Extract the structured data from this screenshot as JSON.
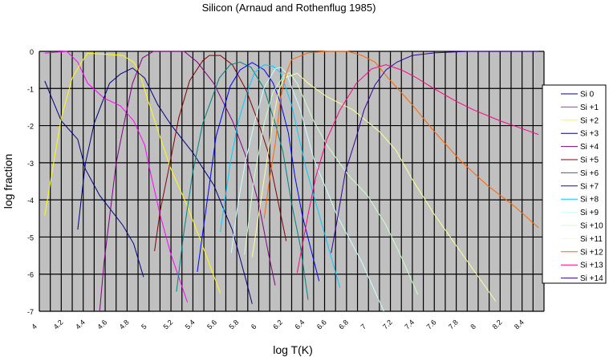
{
  "chart_data": {
    "type": "line",
    "title": "Silicon (Arnaud and Rothenflug 1985)",
    "xlabel": "log T(K)",
    "ylabel": "log fraction",
    "xlim": [
      4.0,
      8.6
    ],
    "ylim": [
      -7,
      0
    ],
    "x_ticks": [
      "4",
      "4.2",
      "4.4",
      "4.6",
      "4.8",
      "5",
      "5.2",
      "5.4",
      "5.6",
      "5.8",
      "6",
      "6.2",
      "6.4",
      "6.6",
      "6.8",
      "7",
      "7.2",
      "7.4",
      "7.6",
      "7.8",
      "8",
      "8.2",
      "8.4"
    ],
    "y_ticks": [
      "0",
      "-1",
      "-2",
      "-3",
      "-4",
      "-5",
      "-6",
      "-7"
    ],
    "grid": "vertical every 0.1, horizontal every 1",
    "plot_background": "#c0c0c0",
    "legend_position": "right",
    "series": [
      {
        "name": "Si  0",
        "color": "#000080",
        "points": [
          [
            4.05,
            -0.8
          ],
          [
            4.2,
            -1.87
          ],
          [
            4.35,
            -2.37
          ],
          [
            4.42,
            -3.17
          ],
          [
            4.55,
            -3.88
          ],
          [
            4.76,
            -4.68
          ],
          [
            4.86,
            -5.18
          ],
          [
            4.95,
            -6.08
          ]
        ]
      },
      {
        "name": "Si +1",
        "color": "#ff00ff",
        "points": [
          [
            4.05,
            -0.05
          ],
          [
            4.25,
            0
          ],
          [
            4.35,
            -0.29
          ],
          [
            4.44,
            -0.86
          ],
          [
            4.59,
            -1.26
          ],
          [
            4.74,
            -1.47
          ],
          [
            4.86,
            -1.87
          ],
          [
            4.96,
            -2.52
          ],
          [
            5.0,
            -3.09
          ],
          [
            5.1,
            -4.39
          ],
          [
            5.2,
            -5.47
          ],
          [
            5.35,
            -6.76
          ]
        ]
      },
      {
        "name": "Si +2",
        "color": "#ffff00",
        "points": [
          [
            4.05,
            -4.42
          ],
          [
            4.1,
            -3.53
          ],
          [
            4.2,
            -1.8
          ],
          [
            4.3,
            -0.72
          ],
          [
            4.4,
            -0.22
          ],
          [
            4.44,
            -0.05
          ],
          [
            4.66,
            -0.09
          ],
          [
            4.76,
            -0.11
          ],
          [
            4.86,
            -0.29
          ],
          [
            4.91,
            -0.54
          ],
          [
            4.98,
            -1.22
          ],
          [
            5.1,
            -2.3
          ],
          [
            5.2,
            -3.17
          ],
          [
            5.35,
            -4.17
          ],
          [
            5.49,
            -5.25
          ],
          [
            5.65,
            -6.51
          ]
        ]
      },
      {
        "name": "Si +3",
        "color": "#000080",
        "points": [
          [
            4.35,
            -4.8
          ],
          [
            4.42,
            -3.02
          ],
          [
            4.5,
            -1.94
          ],
          [
            4.64,
            -0.86
          ],
          [
            4.74,
            -0.61
          ],
          [
            4.85,
            -0.45
          ],
          [
            4.96,
            -0.72
          ],
          [
            5.08,
            -1.44
          ],
          [
            5.2,
            -1.98
          ],
          [
            5.4,
            -2.73
          ],
          [
            5.59,
            -3.6
          ],
          [
            5.69,
            -4.32
          ],
          [
            5.76,
            -4.82
          ],
          [
            5.88,
            -6.12
          ],
          [
            5.94,
            -6.8
          ]
        ]
      },
      {
        "name": "Si +4",
        "color": "#800080",
        "points": [
          [
            4.55,
            -7
          ],
          [
            4.59,
            -5.68
          ],
          [
            4.7,
            -3.02
          ],
          [
            4.79,
            -1.69
          ],
          [
            4.85,
            -0.86
          ],
          [
            4.94,
            -0.18
          ],
          [
            5.04,
            0
          ],
          [
            5.32,
            0
          ],
          [
            5.44,
            -0.29
          ],
          [
            5.59,
            -0.86
          ],
          [
            5.76,
            -1.87
          ],
          [
            5.88,
            -2.81
          ],
          [
            6.0,
            -4.1
          ],
          [
            6.09,
            -5.47
          ],
          [
            6.15,
            -6.3
          ]
        ]
      },
      {
        "name": "Si +5",
        "color": "#800000",
        "points": [
          [
            5.05,
            -5.38
          ],
          [
            5.1,
            -4.32
          ],
          [
            5.19,
            -3.02
          ],
          [
            5.27,
            -1.8
          ],
          [
            5.37,
            -0.79
          ],
          [
            5.49,
            -0.25
          ],
          [
            5.55,
            -0.11
          ],
          [
            5.65,
            -0.11
          ],
          [
            5.76,
            -0.36
          ],
          [
            5.88,
            -1.01
          ],
          [
            6.0,
            -1.94
          ],
          [
            6.08,
            -2.66
          ],
          [
            6.15,
            -3.67
          ],
          [
            6.25,
            -5.11
          ]
        ]
      },
      {
        "name": "Si +6",
        "color": "#008080",
        "points": [
          [
            5.25,
            -6.47
          ],
          [
            5.32,
            -4.82
          ],
          [
            5.4,
            -3.24
          ],
          [
            5.49,
            -1.94
          ],
          [
            5.64,
            -0.72
          ],
          [
            5.74,
            -0.36
          ],
          [
            5.83,
            -0.29
          ],
          [
            5.93,
            -0.43
          ],
          [
            6.05,
            -1.01
          ],
          [
            6.15,
            -1.94
          ],
          [
            6.22,
            -2.7
          ],
          [
            6.3,
            -4.1
          ],
          [
            6.38,
            -5.25
          ],
          [
            6.45,
            -6.69
          ]
        ]
      },
      {
        "name": "Si +7",
        "color": "#0000ff",
        "points": [
          [
            5.44,
            -5.94
          ],
          [
            5.54,
            -3.81
          ],
          [
            5.61,
            -2.3
          ],
          [
            5.74,
            -0.94
          ],
          [
            5.83,
            -0.5
          ],
          [
            5.94,
            -0.3
          ],
          [
            6.05,
            -0.5
          ],
          [
            6.13,
            -0.85
          ],
          [
            6.2,
            -1.4
          ],
          [
            6.27,
            -2.2
          ],
          [
            6.33,
            -3.38
          ],
          [
            6.4,
            -4.46
          ],
          [
            6.55,
            -6.19
          ]
        ]
      },
      {
        "name": "Si +8",
        "color": "#00ccff",
        "points": [
          [
            5.65,
            -4.86
          ],
          [
            5.74,
            -3.02
          ],
          [
            5.81,
            -1.94
          ],
          [
            5.88,
            -1.22
          ],
          [
            5.96,
            -0.58
          ],
          [
            6.05,
            -0.36
          ],
          [
            6.13,
            -0.4
          ],
          [
            6.2,
            -0.58
          ],
          [
            6.3,
            -1.44
          ],
          [
            6.42,
            -3.02
          ],
          [
            6.55,
            -4.39
          ],
          [
            6.74,
            -6.37
          ]
        ]
      },
      {
        "name": "Si +9",
        "color": "#ccffff",
        "points": [
          [
            5.75,
            -5.43
          ],
          [
            5.81,
            -4.1
          ],
          [
            5.88,
            -2.95
          ],
          [
            5.96,
            -1.94
          ],
          [
            6.05,
            -0.97
          ],
          [
            6.15,
            -0.47
          ],
          [
            6.2,
            -0.43
          ],
          [
            6.25,
            -0.58
          ],
          [
            6.38,
            -1.58
          ],
          [
            6.5,
            -2.88
          ],
          [
            6.72,
            -4.46
          ],
          [
            6.94,
            -5.68
          ],
          [
            7.14,
            -7
          ]
        ]
      },
      {
        "name": "Si +10",
        "color": "#ccffcc",
        "points": [
          [
            5.87,
            -5.47
          ],
          [
            5.96,
            -3.38
          ],
          [
            6.05,
            -1.94
          ],
          [
            6.13,
            -1.1
          ],
          [
            6.23,
            -0.65
          ],
          [
            6.28,
            -0.58
          ],
          [
            6.35,
            -0.86
          ],
          [
            6.5,
            -1.87
          ],
          [
            6.62,
            -2.52
          ],
          [
            6.81,
            -3.31
          ],
          [
            6.99,
            -3.88
          ],
          [
            7.16,
            -4.68
          ],
          [
            7.3,
            -5.54
          ],
          [
            7.45,
            -6.55
          ]
        ]
      },
      {
        "name": "Si +11",
        "color": "#ffff99",
        "points": [
          [
            5.94,
            -5.54
          ],
          [
            6.03,
            -3.81
          ],
          [
            6.13,
            -1.85
          ],
          [
            6.18,
            -1.08
          ],
          [
            6.23,
            -0.72
          ],
          [
            6.35,
            -0.59
          ],
          [
            6.45,
            -0.86
          ],
          [
            6.62,
            -1.22
          ],
          [
            6.86,
            -1.58
          ],
          [
            7.1,
            -2.16
          ],
          [
            7.25,
            -2.66
          ],
          [
            7.4,
            -3.45
          ],
          [
            7.6,
            -4.39
          ],
          [
            7.84,
            -5.4
          ],
          [
            8.16,
            -6.73
          ]
        ]
      },
      {
        "name": "Si +12",
        "color": "#ff6600",
        "points": [
          [
            6.05,
            -4.5
          ],
          [
            6.1,
            -3.4
          ],
          [
            6.15,
            -2.5
          ],
          [
            6.2,
            -1.25
          ],
          [
            6.25,
            -0.6
          ],
          [
            6.3,
            -0.22
          ],
          [
            6.45,
            -0.04
          ],
          [
            6.62,
            0
          ],
          [
            6.81,
            0
          ],
          [
            6.94,
            -0.11
          ],
          [
            7.06,
            -0.29
          ],
          [
            7.18,
            -0.72
          ],
          [
            7.4,
            -1.44
          ],
          [
            7.6,
            -2.16
          ],
          [
            7.84,
            -2.95
          ],
          [
            8.08,
            -3.6
          ],
          [
            8.33,
            -4.17
          ],
          [
            8.55,
            -4.75
          ]
        ]
      },
      {
        "name": "Si +13",
        "color": "#ff0080",
        "points": [
          [
            6.35,
            -5.97
          ],
          [
            6.4,
            -5.18
          ],
          [
            6.45,
            -4.39
          ],
          [
            6.52,
            -3.38
          ],
          [
            6.62,
            -2.37
          ],
          [
            6.74,
            -1.58
          ],
          [
            6.89,
            -0.86
          ],
          [
            7.03,
            -0.47
          ],
          [
            7.16,
            -0.36
          ],
          [
            7.3,
            -0.5
          ],
          [
            7.42,
            -0.68
          ],
          [
            7.6,
            -1.01
          ],
          [
            7.79,
            -1.33
          ],
          [
            7.96,
            -1.58
          ],
          [
            8.2,
            -1.87
          ],
          [
            8.55,
            -2.24
          ]
        ]
      },
      {
        "name": "Si +14",
        "color": "#330099",
        "points": [
          [
            6.66,
            -5.43
          ],
          [
            6.72,
            -4.46
          ],
          [
            6.79,
            -3.24
          ],
          [
            6.89,
            -2.3
          ],
          [
            6.96,
            -1.58
          ],
          [
            7.06,
            -0.9
          ],
          [
            7.16,
            -0.5
          ],
          [
            7.26,
            -0.29
          ],
          [
            7.4,
            -0.11
          ],
          [
            7.6,
            -0.04
          ],
          [
            7.91,
            0
          ],
          [
            8.55,
            0
          ]
        ]
      }
    ]
  }
}
